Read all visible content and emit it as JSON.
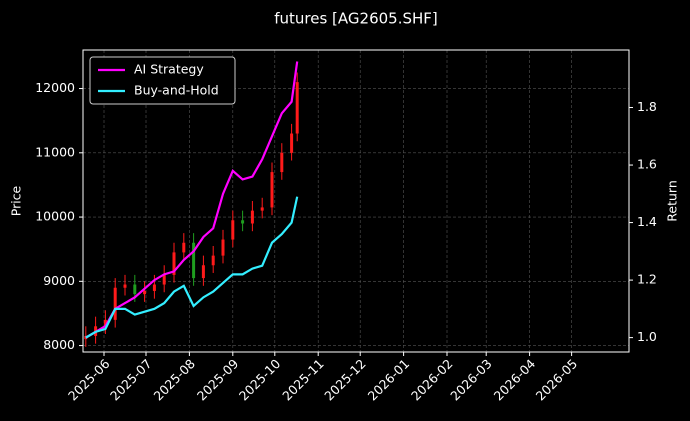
{
  "chart_data": {
    "type": "candlestick",
    "title": "futures [AG2605.SHF]",
    "ylabel": "Price",
    "y2label": "Return",
    "x": [
      "2025-05-19",
      "2025-05-26",
      "2025-06-02",
      "2025-06-09",
      "2025-06-16",
      "2025-06-23",
      "2025-06-30",
      "2025-07-07",
      "2025-07-14",
      "2025-07-21",
      "2025-07-28",
      "2025-08-04",
      "2025-08-11",
      "2025-08-18",
      "2025-08-25",
      "2025-09-01",
      "2025-09-08",
      "2025-09-15",
      "2025-09-22",
      "2025-09-29",
      "2025-10-06",
      "2025-10-13",
      "2025-10-17"
    ],
    "open": [
      8100,
      8150,
      8300,
      8400,
      8900,
      8950,
      8800,
      8850,
      8950,
      9100,
      9450,
      9600,
      9050,
      9250,
      9400,
      9650,
      9950,
      9900,
      10100,
      10150,
      10700,
      11000,
      11300
    ],
    "high": [
      8300,
      8450,
      8550,
      9050,
      9100,
      9100,
      9000,
      9100,
      9250,
      9600,
      9750,
      9750,
      9400,
      9550,
      9800,
      10100,
      10100,
      10250,
      10300,
      10850,
      11150,
      11450,
      12250
    ],
    "low": [
      7980,
      8030,
      8180,
      8280,
      8780,
      8680,
      8680,
      8730,
      8830,
      8980,
      9330,
      8930,
      8930,
      9130,
      9280,
      9530,
      9780,
      9780,
      9980,
      10030,
      10580,
      10880,
      11180
    ],
    "close": [
      8150,
      8300,
      8400,
      8900,
      8950,
      8800,
      8850,
      8950,
      9100,
      9450,
      9600,
      9050,
      9250,
      9400,
      9650,
      9950,
      9900,
      10100,
      10150,
      10700,
      11000,
      11300,
      12100
    ],
    "up_color": "#ff1a1a",
    "down_color": "#1f9e1f",
    "series": [
      {
        "name": "AI Strategy",
        "color": "#ff00ff",
        "axis": "y2",
        "values": [
          1.0,
          1.02,
          1.04,
          1.1,
          1.12,
          1.14,
          1.17,
          1.2,
          1.22,
          1.23,
          1.27,
          1.3,
          1.35,
          1.38,
          1.5,
          1.58,
          1.55,
          1.56,
          1.62,
          1.7,
          1.78,
          1.82,
          1.96
        ]
      },
      {
        "name": "Buy-and-Hold",
        "color": "#33eeff",
        "axis": "y2",
        "values": [
          1.0,
          1.02,
          1.03,
          1.1,
          1.1,
          1.08,
          1.09,
          1.1,
          1.12,
          1.16,
          1.18,
          1.11,
          1.14,
          1.16,
          1.19,
          1.22,
          1.22,
          1.24,
          1.25,
          1.33,
          1.36,
          1.4,
          1.49
        ]
      }
    ],
    "xlim": [
      "2025-05-17",
      "2026-06-11"
    ],
    "xticks": [
      "2025-06",
      "2025-07",
      "2025-08",
      "2025-09",
      "2025-10",
      "2025-11",
      "2025-12",
      "2026-01",
      "2026-02",
      "2026-03",
      "2026-04",
      "2026-05"
    ],
    "ylim": [
      7900,
      12600
    ],
    "yticks": [
      8000,
      9000,
      10000,
      11000,
      12000
    ],
    "y2lim": [
      0.95,
      2.0
    ],
    "y2ticks": [
      {
        "value": 1,
        "label": "1.0"
      },
      1.2,
      1.4,
      1.6,
      1.8
    ],
    "grid": true,
    "legend": "upper left"
  }
}
